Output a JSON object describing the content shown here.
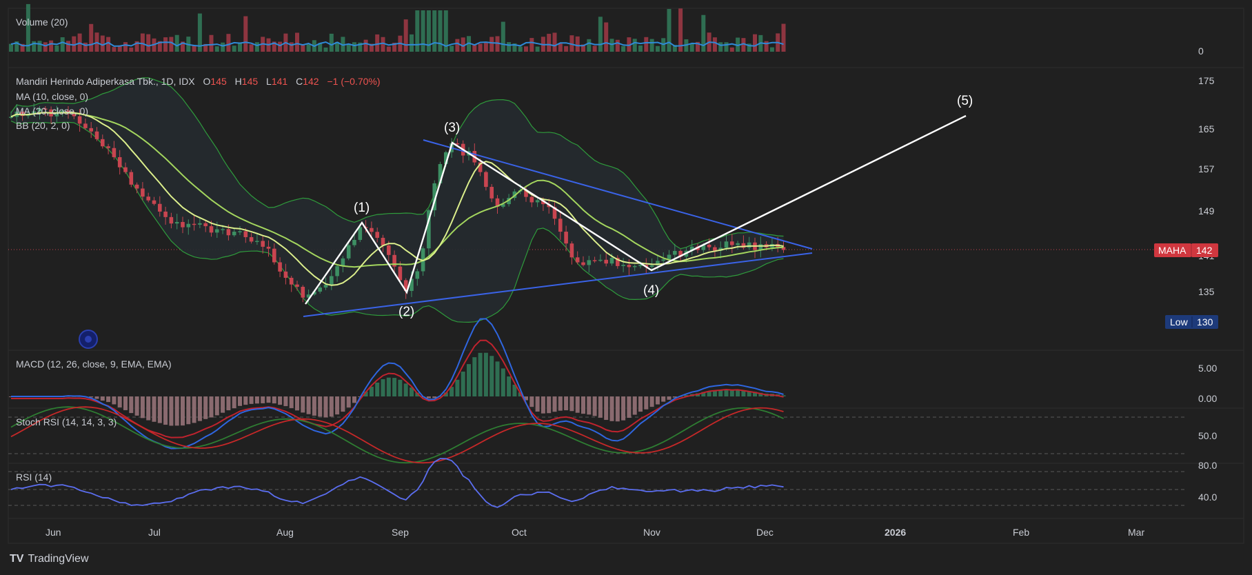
{
  "brand": {
    "logo_text": "TradingView",
    "logo_mark": "TV"
  },
  "colors": {
    "background": "#202020",
    "up": "#3d8f63",
    "down": "#c94550",
    "volume_up": "#2f6e52",
    "volume_down": "#8e3540",
    "ma10": "#dcef8c",
    "ma20": "#a4d65e",
    "bb": "#2f9c3c",
    "bb_fill": "#252a2f",
    "trendline": "#3a63e8",
    "wave": "#ffffff",
    "macd": "#2f66e0",
    "signal": "#c0232e",
    "stoch_k": "#2e7d32",
    "stoch_d": "#c62828",
    "rsi": "#5b6ef0",
    "maha_badge": "#d0373f",
    "low_badge": "#1d3a7a"
  },
  "panes": {
    "volume": {
      "label": "Volume (20)",
      "axis_labels": [
        "0"
      ]
    },
    "main": {
      "symbol": "Mandiri Herindo Adiperkasa Tbk., 1D, IDX",
      "ohlc": {
        "o_label": "O",
        "o": "145",
        "h_label": "H",
        "h": "145",
        "l_label": "L",
        "l": "141",
        "c_label": "C",
        "c": "142",
        "change": "−1 (−0.70%)"
      },
      "indicators": [
        "MA (10, close, 0)",
        "MA (20, close, 0)",
        "BB (20, 2, 0)"
      ],
      "axis_labels": [
        "175",
        "165",
        "157",
        "149",
        "141",
        "135"
      ],
      "price_badge": {
        "symbol": "MAHA",
        "value": "142"
      },
      "low_badge": {
        "label": "Low",
        "value": "130"
      },
      "wave_labels": [
        "(1)",
        "(2)",
        "(3)",
        "(4)",
        "(5)"
      ]
    },
    "macd": {
      "label": "MACD (12, 26, close, 9, EMA, EMA)",
      "axis_labels": [
        "5.00",
        "0.00"
      ]
    },
    "stoch_rsi": {
      "label": "Stoch RSI (14, 14, 3, 3)",
      "axis_labels": [
        "50.0"
      ]
    },
    "rsi": {
      "label": "RSI (14)",
      "axis_labels": [
        "80.0",
        "40.0"
      ]
    }
  },
  "x_axis": {
    "labels": [
      "Jun",
      "Jul",
      "Aug",
      "Sep",
      "Oct",
      "Nov",
      "Dec",
      "2026",
      "Feb",
      "Mar"
    ]
  },
  "chart_data": {
    "type": "candlestick",
    "title": "Mandiri Herindo Adiperkasa Tbk., 1D, IDX",
    "y_ticks": [
      175,
      165,
      157,
      149,
      141,
      135
    ],
    "x_ticks": [
      "Jun",
      "Jul",
      "Aug",
      "Sep",
      "Oct",
      "Nov",
      "Dec",
      "2026",
      "Feb",
      "Mar"
    ],
    "last_close": 142,
    "period_low": 130,
    "series": [
      {
        "type": "candles",
        "ohlc_sample": {
          "open": 145,
          "high": 145,
          "low": 141,
          "close": 142
        }
      },
      {
        "name": "MA (10, close, 0)",
        "type": "line"
      },
      {
        "name": "MA (20, close, 0)",
        "type": "line"
      },
      {
        "name": "BB (20, 2, 0)",
        "type": "band"
      }
    ],
    "wave_count": [
      {
        "label": "(1)",
        "date": "2025-08-21",
        "price": 147
      },
      {
        "label": "(2)",
        "date": "2025-09-01",
        "price": 136
      },
      {
        "label": "(3)",
        "date": "2025-09-10",
        "price": 162
      },
      {
        "label": "(4)",
        "date": "2025-11-01",
        "price": 140
      },
      {
        "label": "(5)",
        "date": "2026-01-18",
        "price": 167
      }
    ],
    "triangle_upper": [
      {
        "date": "2025-09-05",
        "price": 163
      },
      {
        "date": "2025-12-12",
        "price": 143
      }
    ],
    "triangle_lower": [
      {
        "date": "2025-08-05",
        "price": 132
      },
      {
        "date": "2025-12-12",
        "price": 141
      }
    ]
  }
}
